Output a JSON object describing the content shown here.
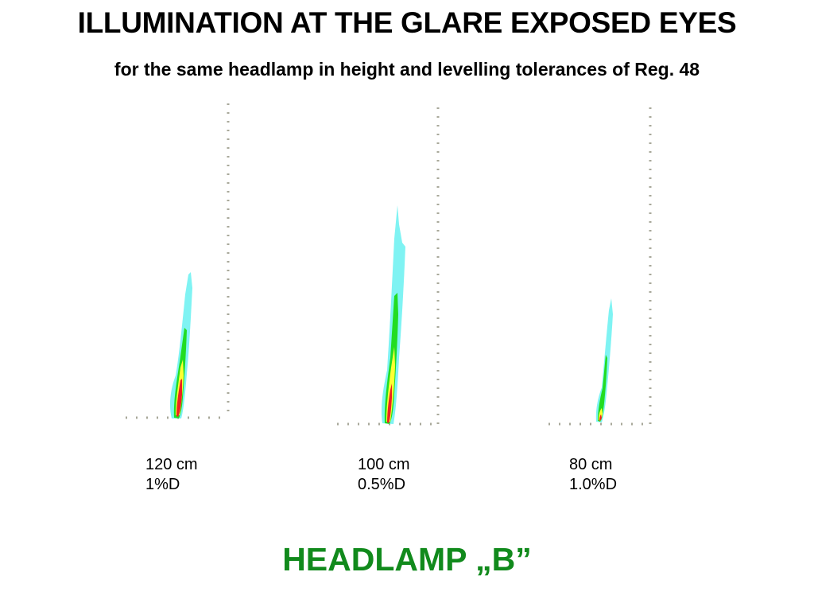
{
  "title": "ILLUMINATION AT THE GLARE EXPOSED EYES",
  "subtitle": "for the same headlamp in height and levelling tolerances of Reg. 48",
  "panels": [
    {
      "height": "120 cm",
      "levelling": "1%D"
    },
    {
      "height": "100 cm",
      "levelling": "0.5%D"
    },
    {
      "height": "80 cm",
      "levelling": "1.0%D"
    }
  ],
  "footer": "HEADLAMP „B”",
  "colors": {
    "cyan": "#7ff3f3",
    "green": "#22dd22",
    "yellow": "#ffff33",
    "red": "#ee2222",
    "axis_dots": "#a8a89a",
    "footer": "#118a1c"
  }
}
